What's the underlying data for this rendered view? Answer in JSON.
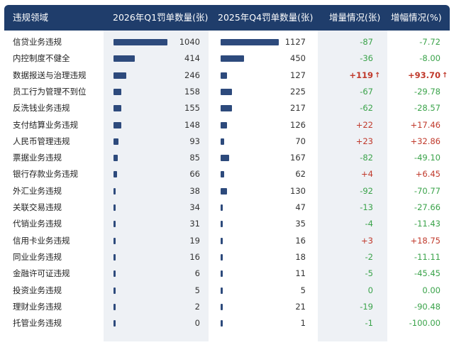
{
  "header": {
    "col_name": "违规领域",
    "col_q1": "2026年Q1罚单数量(张)",
    "col_q4": "2025年Q4罚单数量(张)",
    "col_delta": "增量情况(张)",
    "col_pct": "增幅情况(%)"
  },
  "colors": {
    "header_bg": "#1f3d6b",
    "bar": "#2d4a7c",
    "increase": "#c0392b",
    "decrease": "#3aa34a",
    "band": "#eef1f5"
  },
  "chart_data": {
    "type": "table",
    "columns": [
      "违规领域",
      "2026年Q1罚单数量(张)",
      "2025年Q4罚单数量(张)",
      "增量情况(张)",
      "增幅情况(%)"
    ],
    "rows": [
      {
        "name": "信贷业务违规",
        "q1": 1040,
        "q4": 1127,
        "delta": "-87",
        "pct": "-7.72",
        "up": false,
        "highlight": false
      },
      {
        "name": "内控制度不健全",
        "q1": 414,
        "q4": 450,
        "delta": "-36",
        "pct": "-8.00",
        "up": false,
        "highlight": false
      },
      {
        "name": "数据报送与治理违规",
        "q1": 246,
        "q4": 127,
        "delta": "+119",
        "pct": "+93.70",
        "up": true,
        "highlight": true
      },
      {
        "name": "员工行为管理不到位",
        "q1": 158,
        "q4": 225,
        "delta": "-67",
        "pct": "-29.78",
        "up": false,
        "highlight": false
      },
      {
        "name": "反洗钱业务违规",
        "q1": 155,
        "q4": 217,
        "delta": "-62",
        "pct": "-28.57",
        "up": false,
        "highlight": false
      },
      {
        "name": "支付结算业务违规",
        "q1": 148,
        "q4": 126,
        "delta": "+22",
        "pct": "+17.46",
        "up": true,
        "highlight": false
      },
      {
        "name": "人民币管理违规",
        "q1": 93,
        "q4": 70,
        "delta": "+23",
        "pct": "+32.86",
        "up": true,
        "highlight": false
      },
      {
        "name": "票据业务违规",
        "q1": 85,
        "q4": 167,
        "delta": "-82",
        "pct": "-49.10",
        "up": false,
        "highlight": false
      },
      {
        "name": "银行存款业务违规",
        "q1": 66,
        "q4": 62,
        "delta": "+4",
        "pct": "+6.45",
        "up": true,
        "highlight": false
      },
      {
        "name": "外汇业务违规",
        "q1": 38,
        "q4": 130,
        "delta": "-92",
        "pct": "-70.77",
        "up": false,
        "highlight": false
      },
      {
        "name": "关联交易违规",
        "q1": 34,
        "q4": 47,
        "delta": "-13",
        "pct": "-27.66",
        "up": false,
        "highlight": false
      },
      {
        "name": "代销业务违规",
        "q1": 31,
        "q4": 35,
        "delta": "-4",
        "pct": "-11.43",
        "up": false,
        "highlight": false
      },
      {
        "name": "信用卡业务违规",
        "q1": 19,
        "q4": 16,
        "delta": "+3",
        "pct": "+18.75",
        "up": true,
        "highlight": false
      },
      {
        "name": "同业业务违规",
        "q1": 16,
        "q4": 18,
        "delta": "-2",
        "pct": "-11.11",
        "up": false,
        "highlight": false
      },
      {
        "name": "金融许可证违规",
        "q1": 6,
        "q4": 11,
        "delta": "-5",
        "pct": "-45.45",
        "up": false,
        "highlight": false
      },
      {
        "name": "投资业务违规",
        "q1": 5,
        "q4": 5,
        "delta": "0",
        "pct": "0.00",
        "up": false,
        "highlight": false
      },
      {
        "name": "理财业务违规",
        "q1": 2,
        "q4": 21,
        "delta": "-19",
        "pct": "-90.48",
        "up": false,
        "highlight": false
      },
      {
        "name": "托管业务违规",
        "q1": 0,
        "q4": 1,
        "delta": "-1",
        "pct": "-100.00",
        "up": false,
        "highlight": false
      }
    ]
  }
}
